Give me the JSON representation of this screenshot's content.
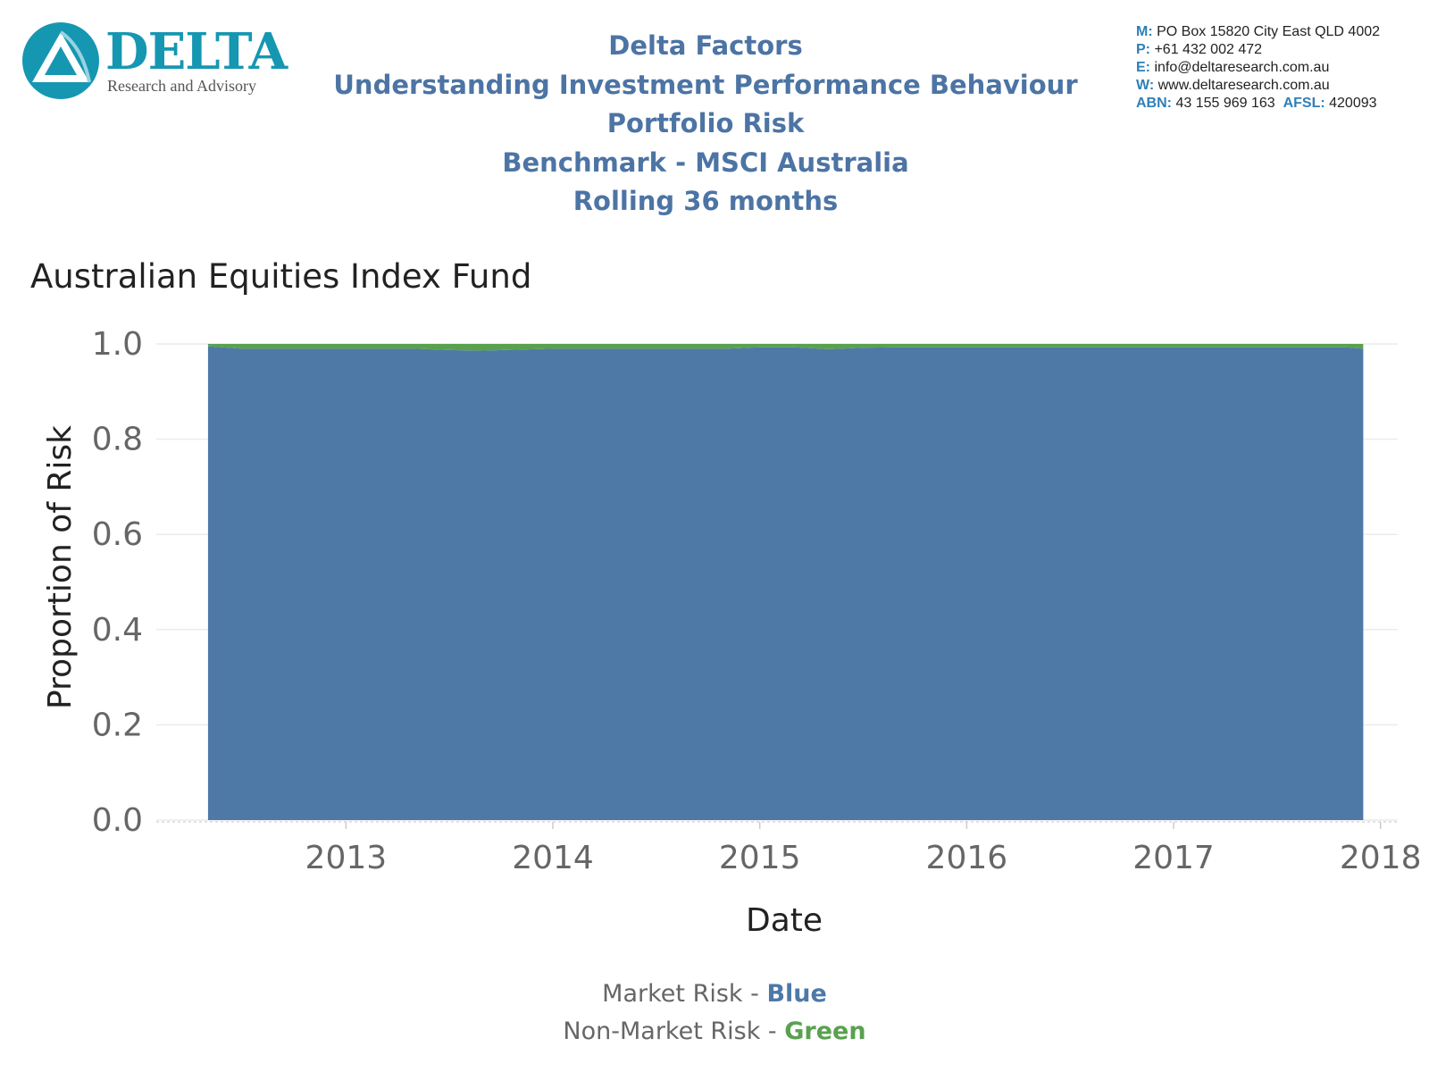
{
  "logo": {
    "name": "DELTA",
    "tagline": "Research and Advisory"
  },
  "header": {
    "lines": [
      "Delta Factors",
      "Understanding Investment Performance Behaviour",
      "Portfolio Risk",
      "Benchmark - MSCI Australia",
      "Rolling 36 months"
    ]
  },
  "contact": {
    "m_key": "M:",
    "m_val": "PO Box 15820 City East QLD 4002",
    "p_key": "P:",
    "p_val": "+61 432 002 472",
    "e_key": "E:",
    "e_val": "info@deltaresearch.com.au",
    "w_key": "W:",
    "w_val": "www.deltaresearch.com.au",
    "abn_key": "ABN:",
    "abn_val": "43 155 969 163",
    "afsl_key": "AFSL:",
    "afsl_val": "420093"
  },
  "legend": {
    "market_label": "Market Risk - ",
    "market_color_word": "Blue",
    "nonmarket_label": "Non-Market Risk - ",
    "nonmarket_color_word": "Green"
  },
  "colors": {
    "market": "#4e79a7",
    "non_market": "#59a14f",
    "header_text": "#4c74a4",
    "logo": "#1597b2"
  },
  "chart_data": {
    "type": "area",
    "stacked": true,
    "title": "Australian Equities Index Fund",
    "xlabel": "Date",
    "ylabel": "Proportion of Risk",
    "ylim": [
      0,
      1.0
    ],
    "yticks": [
      "0.0",
      "0.2",
      "0.4",
      "0.6",
      "0.8",
      "1.0"
    ],
    "xticks": [
      "2013",
      "2014",
      "2015",
      "2016",
      "2017",
      "2018"
    ],
    "xlim": [
      "2012-02",
      "2018-02"
    ],
    "grid": true,
    "x": [
      "2012-05",
      "2012-07",
      "2012-09",
      "2012-11",
      "2013-01",
      "2013-03",
      "2013-05",
      "2013-07",
      "2013-09",
      "2013-11",
      "2014-01",
      "2014-03",
      "2014-05",
      "2014-07",
      "2014-09",
      "2014-11",
      "2015-01",
      "2015-03",
      "2015-05",
      "2015-07",
      "2015-09",
      "2015-11",
      "2016-01",
      "2016-03",
      "2016-05",
      "2016-07",
      "2016-09",
      "2016-11",
      "2017-01",
      "2017-03",
      "2017-05",
      "2017-07",
      "2017-09",
      "2017-11",
      "2017-12"
    ],
    "series": [
      {
        "name": "Market Risk",
        "values": [
          0.995,
          0.99,
          0.99,
          0.99,
          0.99,
          0.99,
          0.99,
          0.987,
          0.986,
          0.988,
          0.99,
          0.99,
          0.99,
          0.99,
          0.99,
          0.99,
          0.993,
          0.993,
          0.989,
          0.992,
          0.993,
          0.993,
          0.993,
          0.993,
          0.993,
          0.993,
          0.993,
          0.993,
          0.993,
          0.993,
          0.993,
          0.993,
          0.993,
          0.993,
          0.99
        ]
      },
      {
        "name": "Non-Market Risk",
        "values": [
          0.005,
          0.01,
          0.01,
          0.01,
          0.01,
          0.01,
          0.01,
          0.013,
          0.014,
          0.012,
          0.01,
          0.01,
          0.01,
          0.01,
          0.01,
          0.01,
          0.007,
          0.007,
          0.011,
          0.008,
          0.007,
          0.007,
          0.007,
          0.007,
          0.007,
          0.007,
          0.007,
          0.007,
          0.007,
          0.007,
          0.007,
          0.007,
          0.007,
          0.007,
          0.01
        ]
      }
    ]
  }
}
